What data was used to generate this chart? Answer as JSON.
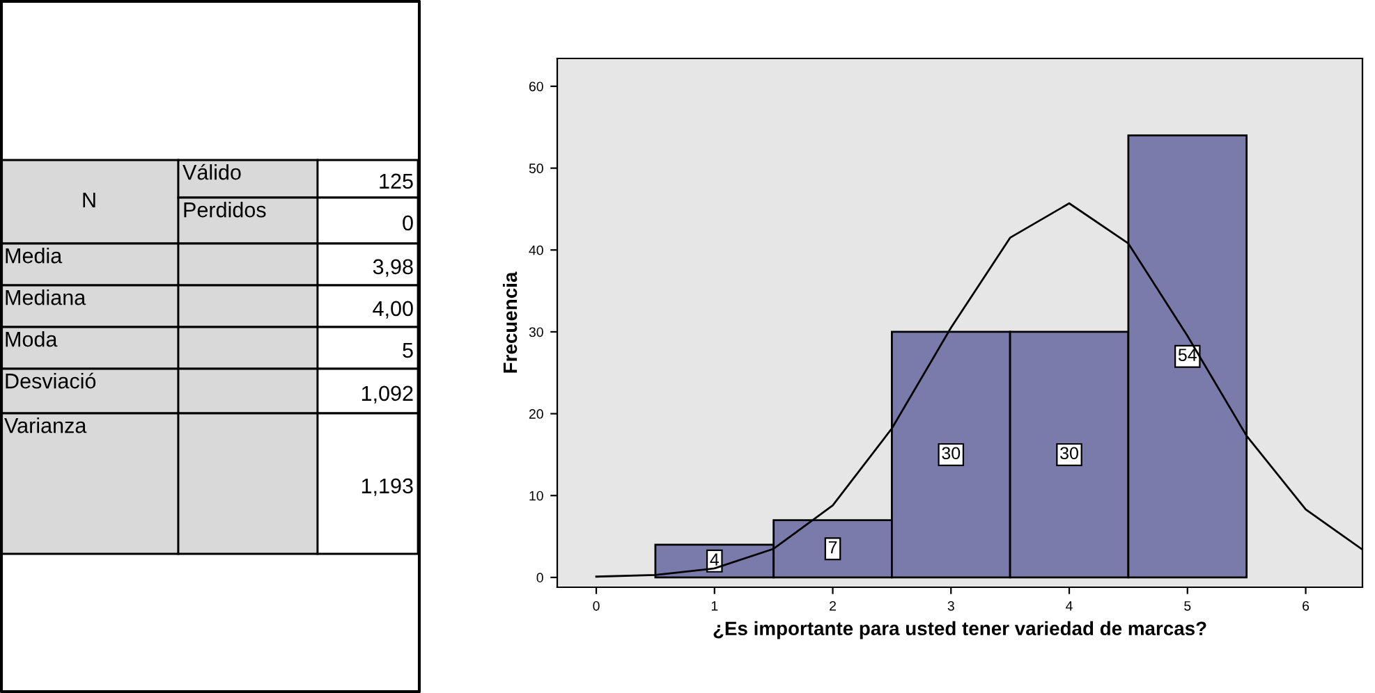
{
  "chart_data": [
    {
      "type": "other",
      "cell_labels": [
        [
          "N",
          "Válido",
          "125"
        ],
        [
          null,
          "Perdidos",
          "0"
        ],
        [
          "Media",
          null,
          "3,98"
        ],
        [
          "Mediana",
          null,
          "4,00"
        ],
        [
          "Moda",
          null,
          "5"
        ],
        [
          "Desviació",
          null,
          "1,092"
        ],
        [
          "Varianza",
          null,
          "1,193"
        ]
      ]
    },
    {
      "type": "histogram",
      "bins": [
        0.5,
        1.5,
        2.5,
        3.5,
        4.5,
        5.5
      ],
      "values": [
        4,
        7,
        30,
        30,
        54
      ],
      "color": "#7b7bab",
      "value_labels": [
        "4",
        "7",
        "30",
        "30",
        "54"
      ],
      "xlabel": "¿Es importante para usted tener variedad de marcas?",
      "ylabel": "Frecuencia",
      "xlim": [
        -0.33,
        6.48
      ],
      "xticks": [
        0,
        1,
        2,
        3,
        4,
        5,
        6
      ],
      "ylim": [
        -1.2,
        63.4
      ],
      "yticks": [
        0,
        10,
        20,
        30,
        40,
        50,
        60
      ],
      "grid": false,
      "series": [
        {
          "type": "line",
          "color": "#000000",
          "x": [
            0,
            0.5,
            1,
            1.5,
            2,
            2.5,
            3,
            3.5,
            4,
            4.5,
            5,
            5.5,
            6,
            6.48
          ],
          "values": [
            0.1,
            0.3,
            1.1,
            3.5,
            8.8,
            18.2,
            30.5,
            41.5,
            45.7,
            40.8,
            29.5,
            17.3,
            8.3,
            3.4
          ]
        }
      ]
    }
  ]
}
